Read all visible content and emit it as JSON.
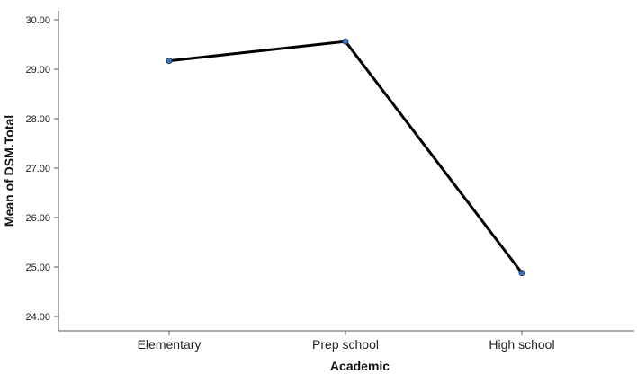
{
  "chart_data": {
    "type": "line",
    "categories": [
      "Elementary",
      "Prep school",
      "High school"
    ],
    "series": [
      {
        "values": [
          29.17,
          29.56,
          24.88
        ],
        "line_color": "#000000",
        "marker_color": "#3a78c0"
      }
    ],
    "xlabel": "Academic",
    "ylabel": "Mean of DSM.Total",
    "ylim": [
      24.0,
      30.0
    ],
    "yticks": [
      "24.00",
      "25.00",
      "26.00",
      "27.00",
      "28.00",
      "29.00",
      "30.00"
    ],
    "grid": false
  }
}
